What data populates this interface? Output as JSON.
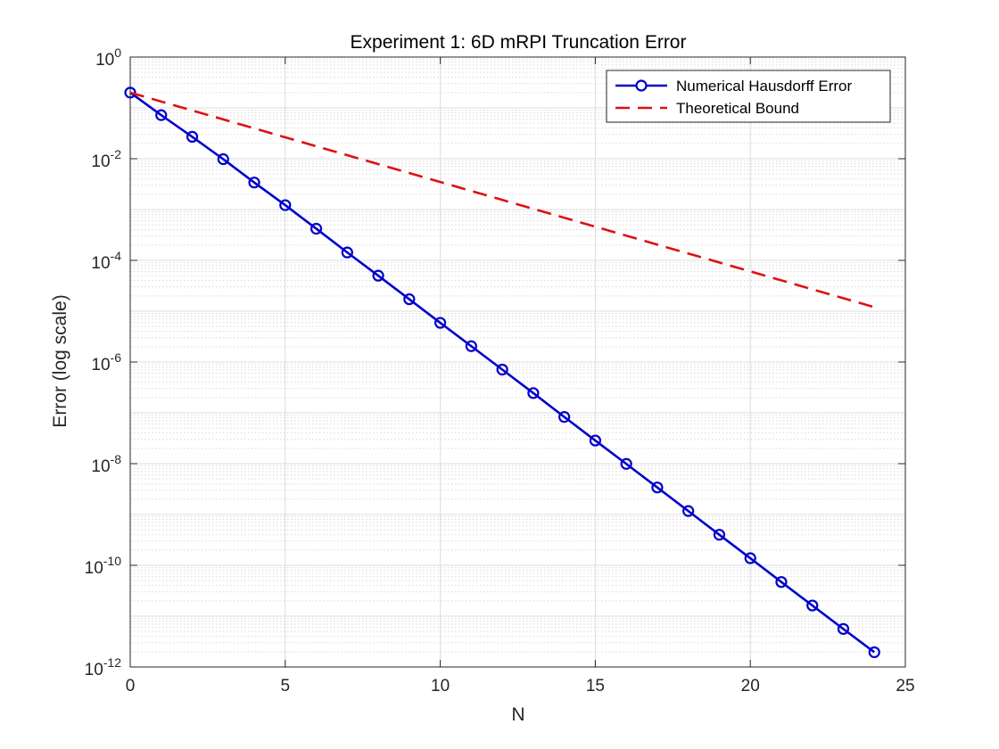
{
  "chart_data": {
    "type": "line",
    "title": "Experiment 1: 6D mRPI Truncation Error",
    "xlabel": "N",
    "ylabel": "Error (log scale)",
    "xlim": [
      0,
      25
    ],
    "ylim": [
      1e-12,
      1
    ],
    "y_scale": "log",
    "grid": true,
    "minor_grid": true,
    "legend_position": "top-right",
    "x_ticks": [
      0,
      5,
      10,
      15,
      20,
      25
    ],
    "x_tick_labels": [
      "0",
      "5",
      "10",
      "15",
      "20",
      "25"
    ],
    "y_ticks": [
      {
        "value": 1,
        "base": "10",
        "exp": "0"
      },
      {
        "value": 0.01,
        "base": "10",
        "exp": "-2"
      },
      {
        "value": 0.0001,
        "base": "10",
        "exp": "-4"
      },
      {
        "value": 1e-06,
        "base": "10",
        "exp": "-6"
      },
      {
        "value": 1e-08,
        "base": "10",
        "exp": "-8"
      },
      {
        "value": 1e-10,
        "base": "10",
        "exp": "-10"
      },
      {
        "value": 1e-12,
        "base": "10",
        "exp": "-12"
      }
    ],
    "series": [
      {
        "name": "Numerical Hausdorff Error",
        "color": "#0000CC",
        "style": "solid",
        "marker": "circle",
        "x": [
          0,
          1,
          2,
          3,
          4,
          5,
          6,
          7,
          8,
          9,
          10,
          11,
          12,
          13,
          14,
          15,
          16,
          17,
          18,
          19,
          20,
          21,
          22,
          23,
          24
        ],
        "y": [
          0.2,
          0.072,
          0.027,
          0.0098,
          0.0034,
          0.00122,
          0.00042,
          0.000143,
          5e-05,
          1.72e-05,
          5.9e-06,
          2.05e-06,
          7.1e-07,
          2.45e-07,
          8.3e-08,
          2.85e-08,
          9.9e-09,
          3.4e-09,
          1.17e-09,
          4e-10,
          1.38e-10,
          4.7e-11,
          1.62e-11,
          5.6e-12,
          1.95e-12
        ]
      },
      {
        "name": "Theoretical Bound",
        "color": "#DD1111",
        "style": "dashed",
        "marker": "none",
        "x": [
          0,
          24
        ],
        "y": [
          0.2,
          1.2e-05
        ]
      }
    ]
  }
}
